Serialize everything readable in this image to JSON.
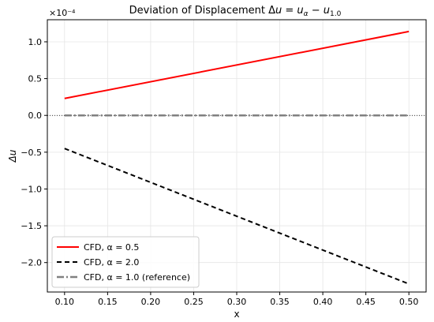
{
  "chart_data": {
    "type": "line",
    "title": "Deviation of Displacement Δu = u_α − u_1.0",
    "title_parts": {
      "prefix": "Deviation of Displacement Δ",
      "u1": "u",
      "eq": " = ",
      "u2": "u",
      "sub_alpha": "α",
      "minus": " − ",
      "u3": "u",
      "sub_ref": "1.0"
    },
    "xlabel": "x",
    "ylabel": "Δu",
    "y_scale_label": "×10⁻⁴",
    "xlim": [
      0.08,
      0.52
    ],
    "ylim": [
      -2.4,
      1.3
    ],
    "x_ticks": [
      0.1,
      0.15,
      0.2,
      0.25,
      0.3,
      0.35,
      0.4,
      0.45,
      0.5
    ],
    "x_tick_labels": [
      "0.10",
      "0.15",
      "0.20",
      "0.25",
      "0.30",
      "0.35",
      "0.40",
      "0.45",
      "0.50"
    ],
    "y_ticks": [
      1.0,
      0.5,
      0.0,
      -0.5,
      -1.0,
      -1.5,
      -2.0
    ],
    "y_tick_labels": [
      "1.0",
      "0.5",
      "0.0",
      "−0.5",
      "−1.0",
      "−1.5",
      "−2.0"
    ],
    "grid": true,
    "zero_line": true,
    "legend_position": "lower-left",
    "series": [
      {
        "name": "CFD, α = 0.5",
        "color": "#ff0000",
        "style": "solid",
        "x": [
          0.1,
          0.5
        ],
        "y": [
          0.23,
          1.14
        ]
      },
      {
        "name": "CFD, α = 2.0",
        "color": "#000000",
        "style": "dashed",
        "x": [
          0.1,
          0.5
        ],
        "y": [
          -0.45,
          -2.29
        ]
      },
      {
        "name": "CFD, α = 1.0 (reference)",
        "color": "#808080",
        "style": "dashdot",
        "x": [
          0.1,
          0.5
        ],
        "y": [
          0.0,
          0.0
        ]
      }
    ]
  }
}
